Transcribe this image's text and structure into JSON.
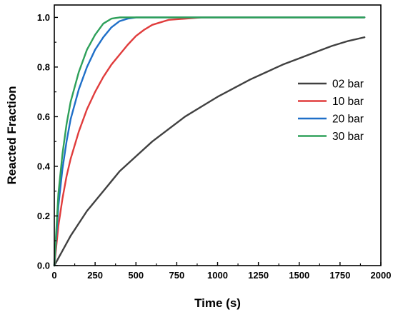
{
  "chart_data": {
    "type": "line",
    "title": "",
    "xlabel": "Time (s)",
    "ylabel": "Reacted Fraction",
    "xlim": [
      0,
      2000
    ],
    "ylim": [
      0,
      1.05
    ],
    "xticks": [
      0,
      250,
      500,
      750,
      1000,
      1250,
      1500,
      1750,
      2000
    ],
    "xtick_labels": [
      "0",
      "250",
      "500",
      "750",
      "1000",
      "1250",
      "1500",
      "1750",
      "2000"
    ],
    "yticks": [
      0,
      0.2,
      0.4,
      0.6,
      0.8,
      1.0
    ],
    "ytick_labels": [
      "0.0",
      "0.2",
      "0.4",
      "0.6",
      "0.8",
      "1.0"
    ],
    "grid": false,
    "legend_position": "right",
    "series": [
      {
        "name": "02 bar",
        "color": "#404040",
        "x": [
          0,
          50,
          100,
          150,
          200,
          250,
          300,
          350,
          400,
          500,
          600,
          700,
          800,
          900,
          1000,
          1100,
          1200,
          1300,
          1400,
          1500,
          1600,
          1700,
          1800,
          1900
        ],
        "y": [
          0,
          0.06,
          0.12,
          0.17,
          0.22,
          0.26,
          0.3,
          0.34,
          0.38,
          0.44,
          0.5,
          0.55,
          0.6,
          0.64,
          0.68,
          0.715,
          0.75,
          0.78,
          0.81,
          0.835,
          0.86,
          0.885,
          0.905,
          0.92
        ]
      },
      {
        "name": "10 bar",
        "color": "#e03c3c",
        "x": [
          0,
          25,
          50,
          75,
          100,
          150,
          200,
          250,
          300,
          350,
          400,
          450,
          500,
          550,
          600,
          650,
          700,
          800,
          900,
          1000,
          1500,
          1900
        ],
        "y": [
          0,
          0.16,
          0.27,
          0.36,
          0.43,
          0.54,
          0.63,
          0.7,
          0.76,
          0.81,
          0.85,
          0.89,
          0.925,
          0.95,
          0.97,
          0.98,
          0.99,
          0.995,
          1.0,
          1.0,
          1.0,
          1.0
        ],
        "note": ""
      },
      {
        "name": "20 bar",
        "color": "#1f6fc8",
        "x": [
          0,
          25,
          50,
          75,
          100,
          150,
          200,
          250,
          300,
          350,
          400,
          450,
          500,
          600,
          1000,
          1500,
          1900
        ],
        "y": [
          0,
          0.24,
          0.39,
          0.5,
          0.59,
          0.71,
          0.8,
          0.87,
          0.92,
          0.96,
          0.985,
          0.995,
          1.0,
          1.0,
          1.0,
          1.0,
          1.0
        ]
      },
      {
        "name": "30 bar",
        "color": "#2ea05a",
        "x": [
          0,
          25,
          50,
          75,
          100,
          150,
          200,
          250,
          300,
          350,
          400,
          450,
          500,
          1000,
          1500,
          1900
        ],
        "y": [
          0,
          0.29,
          0.45,
          0.57,
          0.66,
          0.78,
          0.87,
          0.93,
          0.975,
          0.995,
          1.0,
          1.0,
          1.0,
          1.0,
          1.0,
          1.0
        ]
      }
    ]
  }
}
